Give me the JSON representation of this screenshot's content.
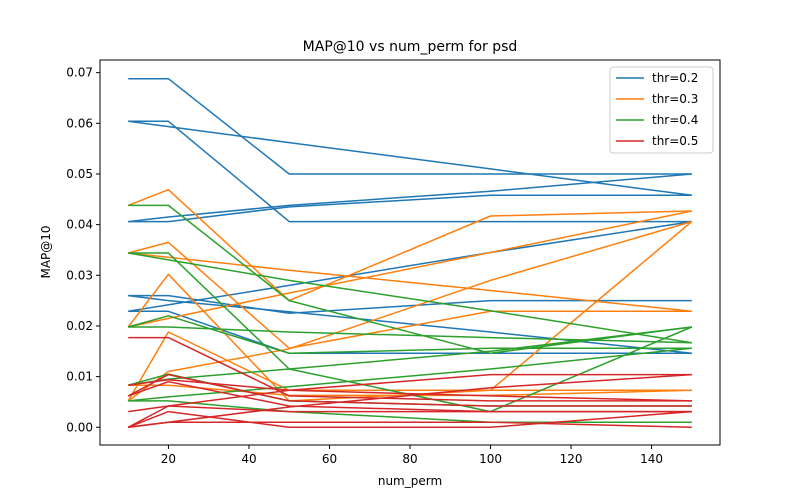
{
  "chart_data": {
    "type": "line",
    "title": "MAP@10 vs num_perm for psd",
    "xlabel": "num_perm",
    "ylabel": "MAP@10",
    "xlim": [
      3,
      157
    ],
    "ylim": [
      -0.0035,
      0.0725
    ],
    "xticks": [
      20,
      40,
      60,
      80,
      100,
      120,
      140
    ],
    "yticks": [
      0.0,
      0.01,
      0.02,
      0.03,
      0.04,
      0.05,
      0.06,
      0.07
    ],
    "ytick_labels": [
      "0.00",
      "0.01",
      "0.02",
      "0.03",
      "0.04",
      "0.05",
      "0.06",
      "0.07"
    ],
    "grid": false,
    "legend_position": "top-right",
    "series": [
      {
        "name": "thr=0.2",
        "color": "#1f77b4",
        "lines": [
          [
            [
              10,
              0.0688
            ],
            [
              20,
              0.0688
            ],
            [
              50,
              0.05
            ],
            [
              100,
              0.05
            ],
            [
              150,
              0.05
            ]
          ],
          [
            [
              10,
              0.0604
            ],
            [
              20,
              0.0604
            ],
            [
              50,
              0.0406
            ],
            [
              100,
              0.0406
            ],
            [
              150,
              0.0406
            ]
          ],
          [
            [
              10,
              0.0604
            ],
            [
              50,
              0.0562
            ],
            [
              100,
              0.051
            ],
            [
              150,
              0.0458
            ]
          ],
          [
            [
              10,
              0.0406
            ],
            [
              20,
              0.0406
            ],
            [
              50,
              0.0435
            ],
            [
              100,
              0.0458
            ],
            [
              150,
              0.0458
            ]
          ],
          [
            [
              10,
              0.0406
            ],
            [
              20,
              0.0415
            ],
            [
              50,
              0.0438
            ],
            [
              100,
              0.0466
            ],
            [
              150,
              0.05
            ]
          ],
          [
            [
              10,
              0.026
            ],
            [
              20,
              0.026
            ],
            [
              50,
              0.0225
            ],
            [
              100,
              0.025
            ],
            [
              150,
              0.025
            ]
          ],
          [
            [
              10,
              0.026
            ],
            [
              20,
              0.025
            ],
            [
              50,
              0.0228
            ],
            [
              100,
              0.0188
            ],
            [
              150,
              0.0146
            ]
          ],
          [
            [
              10,
              0.0229
            ],
            [
              20,
              0.0229
            ],
            [
              50,
              0.0146
            ],
            [
              100,
              0.0146
            ],
            [
              150,
              0.0146
            ]
          ],
          [
            [
              10,
              0.0229
            ],
            [
              50,
              0.028
            ],
            [
              100,
              0.0345
            ],
            [
              150,
              0.0406
            ]
          ]
        ]
      },
      {
        "name": "thr=0.3",
        "color": "#ff7f0e",
        "lines": [
          [
            [
              10,
              0.0438
            ],
            [
              20,
              0.0469
            ],
            [
              50,
              0.025
            ],
            [
              100,
              0.0417
            ],
            [
              150,
              0.0427
            ]
          ],
          [
            [
              10,
              0.0344
            ],
            [
              20,
              0.0365
            ],
            [
              50,
              0.0156
            ],
            [
              100,
              0.0229
            ],
            [
              150,
              0.0229
            ]
          ],
          [
            [
              10,
              0.0344
            ],
            [
              50,
              0.031
            ],
            [
              100,
              0.027
            ],
            [
              150,
              0.0229
            ]
          ],
          [
            [
              10,
              0.0198
            ],
            [
              20,
              0.0302
            ],
            [
              50,
              0.0052
            ],
            [
              100,
              0.0073
            ],
            [
              150,
              0.0073
            ]
          ],
          [
            [
              10,
              0.0198
            ],
            [
              20,
              0.0215
            ],
            [
              50,
              0.0265
            ],
            [
              100,
              0.0345
            ],
            [
              150,
              0.0427
            ]
          ],
          [
            [
              10,
              0.0052
            ],
            [
              20,
              0.0188
            ],
            [
              50,
              0.0073
            ],
            [
              100,
              0.0073
            ],
            [
              150,
              0.0406
            ]
          ],
          [
            [
              10,
              0.0052
            ],
            [
              20,
              0.011
            ],
            [
              50,
              0.0155
            ],
            [
              100,
              0.029
            ],
            [
              150,
              0.0406
            ]
          ],
          [
            [
              10,
              0.0083
            ],
            [
              20,
              0.0083
            ],
            [
              50,
              0.0063
            ],
            [
              100,
              0.0063
            ],
            [
              150,
              0.0073
            ]
          ]
        ]
      },
      {
        "name": "thr=0.4",
        "color": "#2ca02c",
        "lines": [
          [
            [
              10,
              0.0438
            ],
            [
              20,
              0.0438
            ],
            [
              50,
              0.025
            ],
            [
              100,
              0.0146
            ],
            [
              150,
              0.0198
            ]
          ],
          [
            [
              10,
              0.0344
            ],
            [
              20,
              0.0344
            ],
            [
              50,
              0.0115
            ],
            [
              100,
              0.0031
            ],
            [
              150,
              0.0198
            ]
          ],
          [
            [
              10,
              0.0344
            ],
            [
              50,
              0.029
            ],
            [
              100,
              0.023
            ],
            [
              150,
              0.0167
            ]
          ],
          [
            [
              10,
              0.0198
            ],
            [
              20,
              0.0198
            ],
            [
              50,
              0.0188
            ],
            [
              100,
              0.0177
            ],
            [
              150,
              0.0167
            ]
          ],
          [
            [
              10,
              0.0083
            ],
            [
              20,
              0.0105
            ],
            [
              50,
              0.0052
            ],
            [
              100,
              0.0042
            ],
            [
              150,
              0.0042
            ]
          ],
          [
            [
              10,
              0.0083
            ],
            [
              20,
              0.0095
            ],
            [
              50,
              0.0115
            ],
            [
              100,
              0.015
            ],
            [
              150,
              0.0198
            ]
          ],
          [
            [
              10,
              0.0052
            ],
            [
              20,
              0.0052
            ],
            [
              50,
              0.0031
            ],
            [
              100,
              0.001
            ],
            [
              150,
              0.001
            ]
          ],
          [
            [
              10,
              0.0052
            ],
            [
              20,
              0.006
            ],
            [
              50,
              0.008
            ],
            [
              100,
              0.0115
            ],
            [
              150,
              0.0156
            ]
          ],
          [
            [
              10,
              0.0198
            ],
            [
              20,
              0.022
            ],
            [
              50,
              0.0146
            ],
            [
              100,
              0.0156
            ],
            [
              150,
              0.0156
            ]
          ]
        ]
      },
      {
        "name": "thr=0.5",
        "color": "#d62728",
        "lines": [
          [
            [
              10,
              0.0177
            ],
            [
              20,
              0.0177
            ],
            [
              50,
              0.0062
            ],
            [
              100,
              0.0052
            ],
            [
              150,
              0.0052
            ]
          ],
          [
            [
              10,
              0.0031
            ],
            [
              20,
              0.0042
            ],
            [
              50,
              0.0073
            ],
            [
              100,
              0.0104
            ],
            [
              150,
              0.0104
            ]
          ],
          [
            [
              10,
              0.0083
            ],
            [
              20,
              0.0094
            ],
            [
              50,
              0.0073
            ],
            [
              100,
              0.0062
            ],
            [
              150,
              0.0052
            ]
          ],
          [
            [
              10,
              0.0062
            ],
            [
              20,
              0.0104
            ],
            [
              50,
              0.0052
            ],
            [
              100,
              0.0042
            ],
            [
              150,
              0.0042
            ]
          ],
          [
            [
              10,
              0.0062
            ],
            [
              20,
              0.009
            ],
            [
              50,
              0.0042
            ],
            [
              100,
              0.0031
            ],
            [
              150,
              0.0031
            ]
          ],
          [
            [
              10,
              0.0
            ],
            [
              20,
              0.0031
            ],
            [
              50,
              0.0
            ],
            [
              100,
              0.0
            ],
            [
              150,
              0.0031
            ]
          ],
          [
            [
              10,
              0.0
            ],
            [
              20,
              0.0042
            ],
            [
              50,
              0.0031
            ],
            [
              100,
              0.0031
            ],
            [
              150,
              0.0031
            ]
          ],
          [
            [
              10,
              0.0
            ],
            [
              20,
              0.001
            ],
            [
              50,
              0.001
            ],
            [
              100,
              0.001
            ],
            [
              150,
              0.0
            ]
          ],
          [
            [
              10,
              0.0
            ],
            [
              50,
              0.004
            ],
            [
              100,
              0.0078
            ],
            [
              150,
              0.0104
            ]
          ]
        ]
      }
    ]
  }
}
